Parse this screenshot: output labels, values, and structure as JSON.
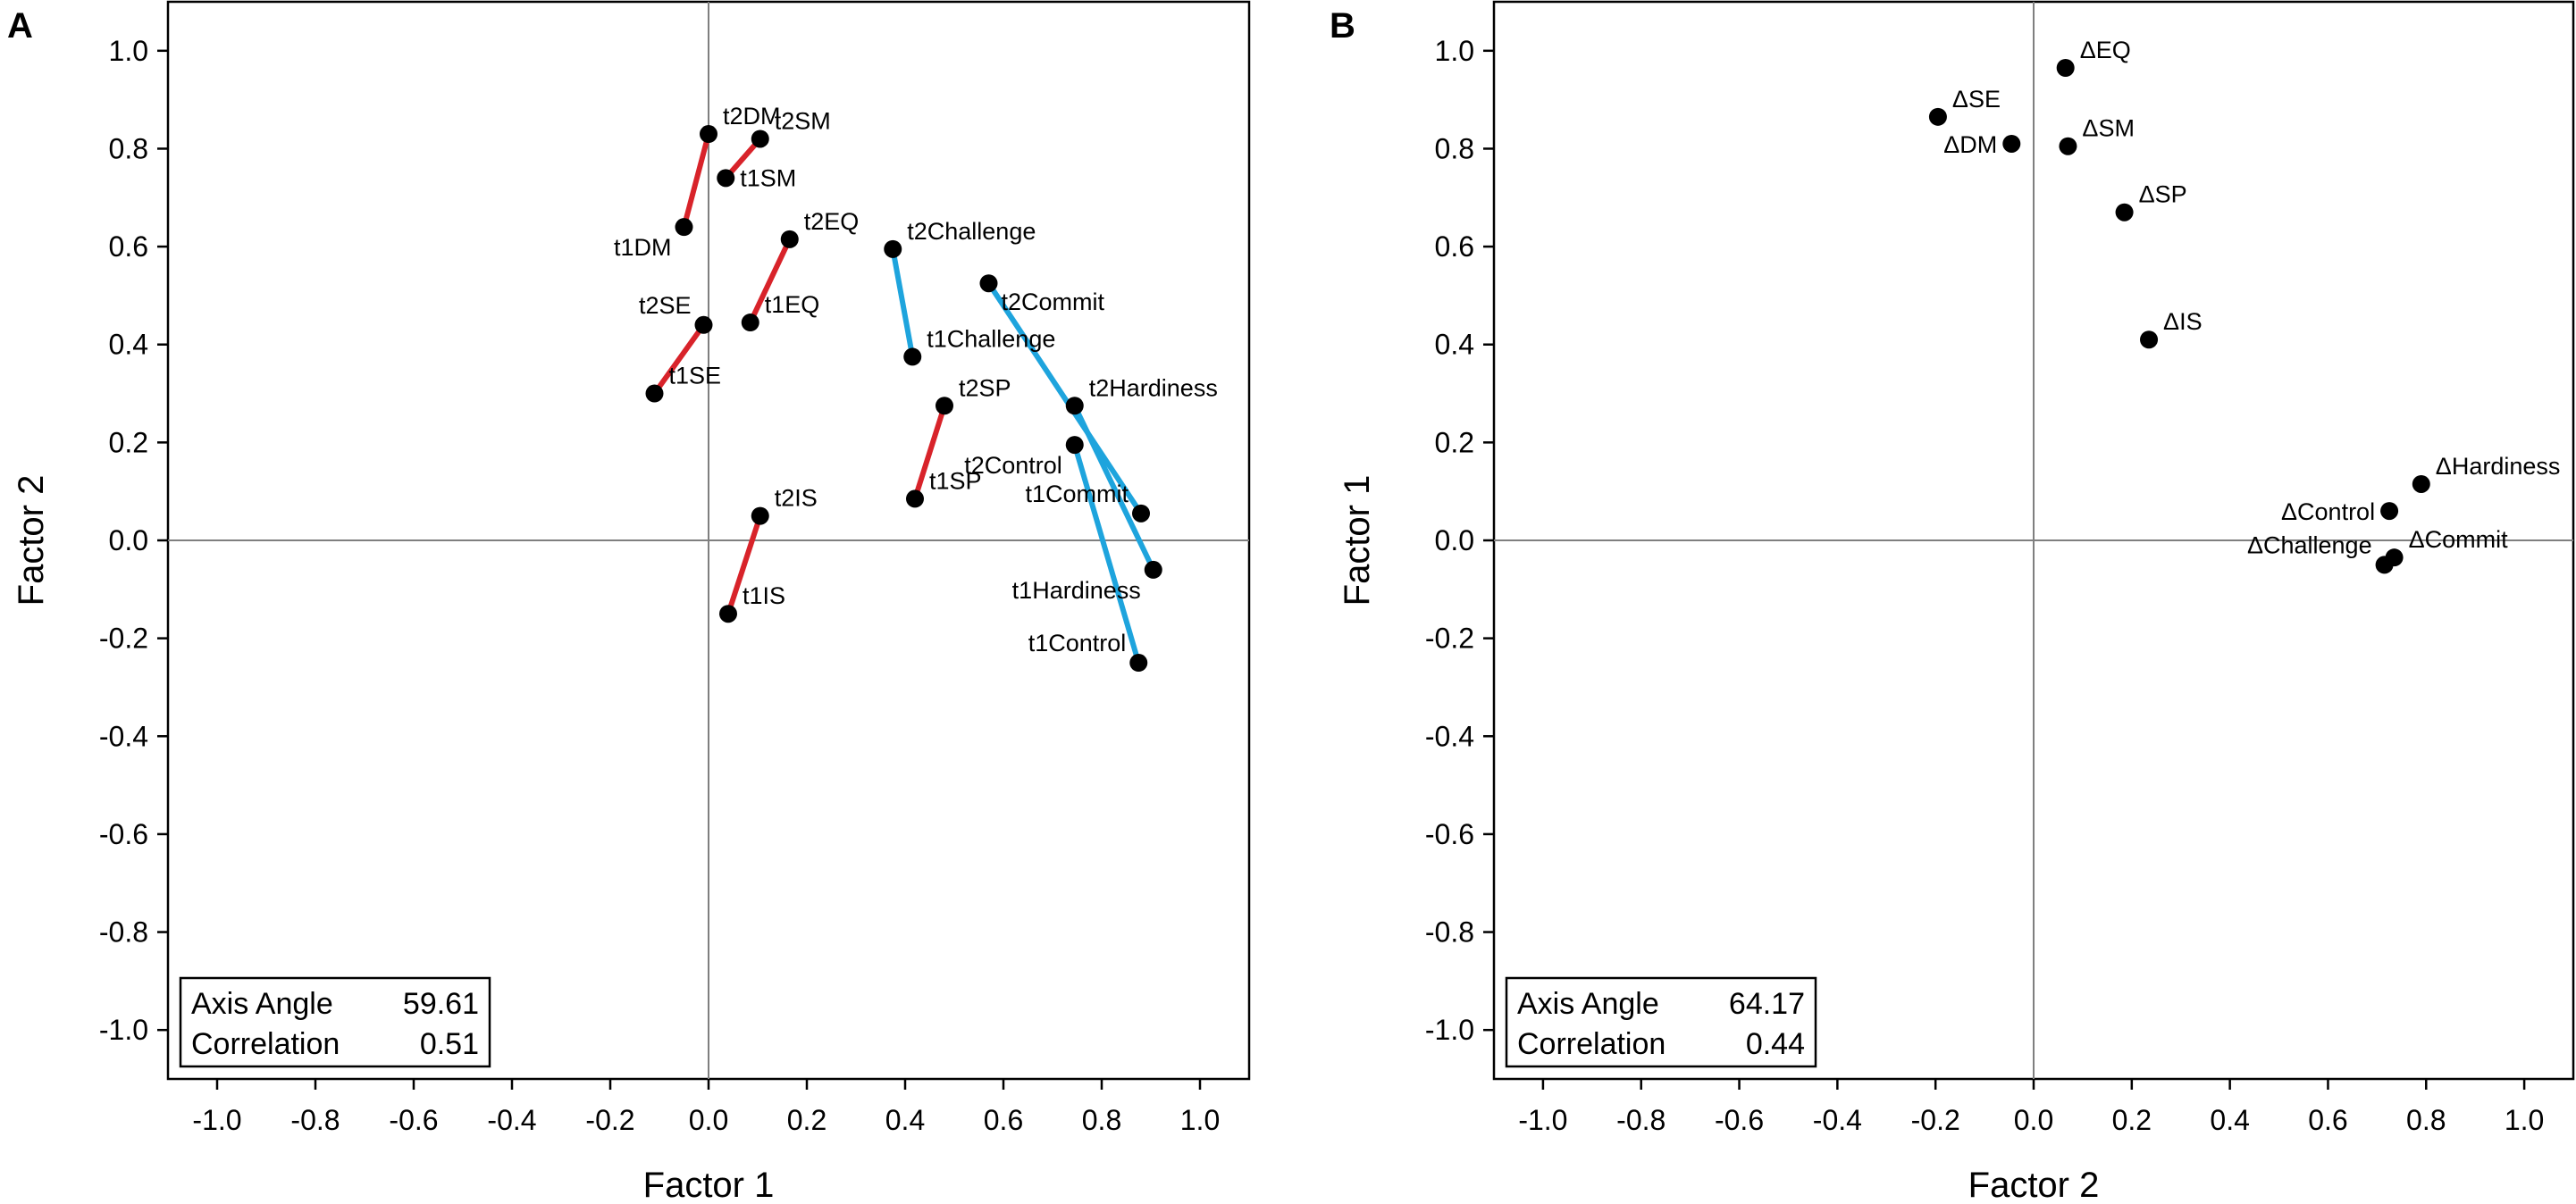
{
  "chart_data": [
    {
      "type": "scatter",
      "panel": "A",
      "xlabel": "Factor 1",
      "ylabel": "Factor 2",
      "xlim": [
        -1.1,
        1.1
      ],
      "ylim": [
        -1.1,
        1.1
      ],
      "xticks": [
        -1.0,
        -0.8,
        -0.6,
        -0.4,
        -0.2,
        0.0,
        0.2,
        0.4,
        0.6,
        0.8,
        1.0
      ],
      "yticks": [
        -1.0,
        -0.8,
        -0.6,
        -0.4,
        -0.2,
        0.0,
        0.2,
        0.4,
        0.6,
        0.8,
        1.0
      ],
      "xtick_labels": [
        "-1.0",
        "-0.8",
        "-0.6",
        "-0.4",
        "-0.2",
        "0.0",
        "0.2",
        "0.4",
        "0.6",
        "0.8",
        "1.0"
      ],
      "ytick_labels": [
        "-1.0",
        "-0.8",
        "-0.6",
        "-0.4",
        "-0.2",
        "0.0",
        "0.2",
        "0.4",
        "0.6",
        "0.8",
        "1.0"
      ],
      "points": [
        {
          "label": "t2DM",
          "x": 0.0,
          "y": 0.83,
          "anchor": "right-up"
        },
        {
          "label": "t1DM",
          "x": -0.05,
          "y": 0.64,
          "anchor": "left-down"
        },
        {
          "label": "t2SM",
          "x": 0.105,
          "y": 0.82,
          "anchor": "right-up"
        },
        {
          "label": "t1SM",
          "x": 0.035,
          "y": 0.74,
          "anchor": "right"
        },
        {
          "label": "t2EQ",
          "x": 0.165,
          "y": 0.615,
          "anchor": "right-up"
        },
        {
          "label": "t1EQ",
          "x": 0.085,
          "y": 0.445,
          "anchor": "right-up"
        },
        {
          "label": "t2SE",
          "x": -0.01,
          "y": 0.44,
          "anchor": "left-up"
        },
        {
          "label": "t1SE",
          "x": -0.11,
          "y": 0.3,
          "anchor": "right-up"
        },
        {
          "label": "t2IS",
          "x": 0.105,
          "y": 0.05,
          "anchor": "right-up"
        },
        {
          "label": "t1IS",
          "x": 0.04,
          "y": -0.15,
          "anchor": "right-up"
        },
        {
          "label": "t2SP",
          "x": 0.48,
          "y": 0.275,
          "anchor": "right-up"
        },
        {
          "label": "t1SP",
          "x": 0.42,
          "y": 0.085,
          "anchor": "right-up"
        },
        {
          "label": "t2Challenge",
          "x": 0.375,
          "y": 0.595,
          "anchor": "right-up"
        },
        {
          "label": "t1Challenge",
          "x": 0.415,
          "y": 0.375,
          "anchor": "right-up"
        },
        {
          "label": "t2Commit",
          "x": 0.57,
          "y": 0.525,
          "anchor": "right-down"
        },
        {
          "label": "t1Commit",
          "x": 0.88,
          "y": 0.055,
          "anchor": "left-up"
        },
        {
          "label": "t2Hardiness",
          "x": 0.745,
          "y": 0.275,
          "anchor": "right-up"
        },
        {
          "label": "t1Hardiness",
          "x": 0.905,
          "y": -0.06,
          "anchor": "left-down"
        },
        {
          "label": "t2Control",
          "x": 0.745,
          "y": 0.195,
          "anchor": "left-down"
        },
        {
          "label": "t1Control",
          "x": 0.875,
          "y": -0.25,
          "anchor": "left-up"
        }
      ],
      "segments": [
        {
          "from": "t1DM",
          "to": "t2DM",
          "color": "#d8232a"
        },
        {
          "from": "t1SM",
          "to": "t2SM",
          "color": "#d8232a"
        },
        {
          "from": "t1EQ",
          "to": "t2EQ",
          "color": "#d8232a"
        },
        {
          "from": "t1SE",
          "to": "t2SE",
          "color": "#d8232a"
        },
        {
          "from": "t1IS",
          "to": "t2IS",
          "color": "#d8232a"
        },
        {
          "from": "t1SP",
          "to": "t2SP",
          "color": "#d8232a"
        },
        {
          "from": "t1Challenge",
          "to": "t2Challenge",
          "color": "#1ea4dd"
        },
        {
          "from": "t1Commit",
          "to": "t2Commit",
          "color": "#1ea4dd"
        },
        {
          "from": "t1Hardiness",
          "to": "t2Hardiness",
          "color": "#1ea4dd"
        },
        {
          "from": "t1Control",
          "to": "t2Control",
          "color": "#1ea4dd"
        }
      ],
      "stats": {
        "axis_angle_label": "Axis Angle",
        "axis_angle": "59.61",
        "correlation_label": "Correlation",
        "correlation": "0.51"
      }
    },
    {
      "type": "scatter",
      "panel": "B",
      "xlabel": "Factor 2",
      "ylabel": "Factor 1",
      "xlim": [
        -1.1,
        1.1
      ],
      "ylim": [
        -1.1,
        1.1
      ],
      "xticks": [
        -1.0,
        -0.8,
        -0.6,
        -0.4,
        -0.2,
        0.0,
        0.2,
        0.4,
        0.6,
        0.8,
        1.0
      ],
      "yticks": [
        -1.0,
        -0.8,
        -0.6,
        -0.4,
        -0.2,
        0.0,
        0.2,
        0.4,
        0.6,
        0.8,
        1.0
      ],
      "xtick_labels": [
        "-1.0",
        "-0.8",
        "-0.6",
        "-0.4",
        "-0.2",
        "0.0",
        "0.2",
        "0.4",
        "0.6",
        "0.8",
        "1.0"
      ],
      "ytick_labels": [
        "-1.0",
        "-0.8",
        "-0.6",
        "-0.4",
        "-0.2",
        "0.0",
        "0.2",
        "0.4",
        "0.6",
        "0.8",
        "1.0"
      ],
      "points": [
        {
          "label": "ΔEQ",
          "x": 0.065,
          "y": 0.965,
          "anchor": "right-up"
        },
        {
          "label": "ΔSE",
          "x": -0.195,
          "y": 0.865,
          "anchor": "right-up"
        },
        {
          "label": "ΔDM",
          "x": -0.045,
          "y": 0.81,
          "anchor": "left"
        },
        {
          "label": "ΔSM",
          "x": 0.07,
          "y": 0.805,
          "anchor": "right-up"
        },
        {
          "label": "ΔSP",
          "x": 0.185,
          "y": 0.67,
          "anchor": "right-up"
        },
        {
          "label": "ΔIS",
          "x": 0.235,
          "y": 0.41,
          "anchor": "right-up"
        },
        {
          "label": "ΔHardiness",
          "x": 0.79,
          "y": 0.115,
          "anchor": "right-up"
        },
        {
          "label": "ΔControl",
          "x": 0.725,
          "y": 0.06,
          "anchor": "left"
        },
        {
          "label": "ΔCommit",
          "x": 0.735,
          "y": -0.035,
          "anchor": "right-up"
        },
        {
          "label": "ΔChallenge",
          "x": 0.715,
          "y": -0.05,
          "anchor": "left-up"
        }
      ],
      "segments": [],
      "stats": {
        "axis_angle_label": "Axis Angle",
        "axis_angle": "64.17",
        "correlation_label": "Correlation",
        "correlation": "0.44"
      }
    }
  ]
}
